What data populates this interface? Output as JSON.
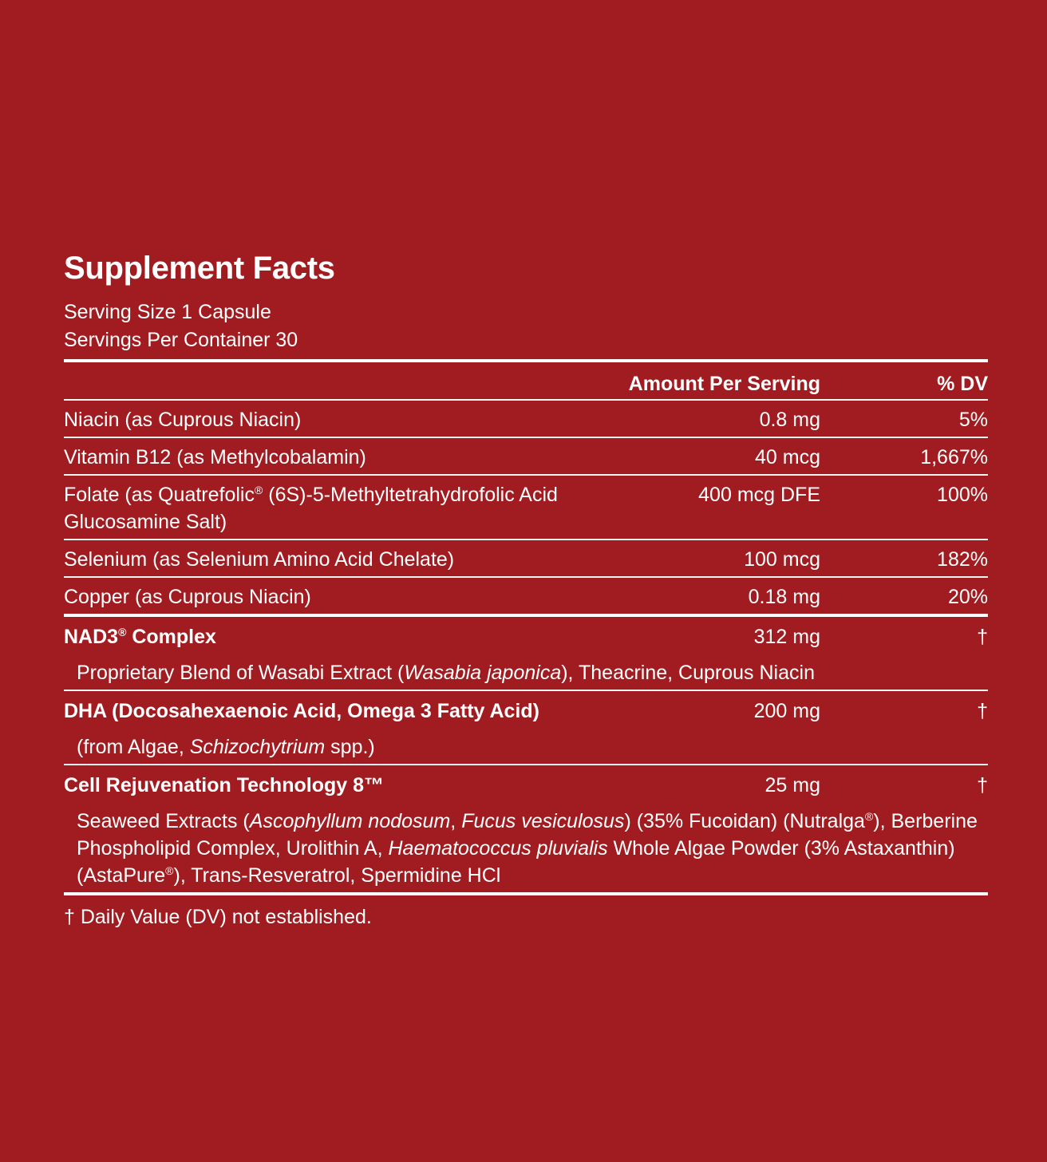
{
  "title": "Supplement Facts",
  "serving_size": "Serving Size 1 Capsule",
  "servings_per_container": "Servings Per Container 30",
  "header": {
    "amount": "Amount Per Serving",
    "dv": "% DV"
  },
  "nutrients": [
    {
      "name": "Niacin (as Cuprous Niacin)",
      "amount": "0.8 mg",
      "dv": "5%"
    },
    {
      "name": "Vitamin B12 (as Methylcobalamin)",
      "amount": "40 mcg",
      "dv": "1,667%"
    },
    {
      "name": "Folate (as Quatrefolic® (6S)-5-Methyltetrahydrofolic Acid Glucosamine Salt)",
      "amount": "400 mcg DFE",
      "dv": "100%"
    },
    {
      "name": "Selenium (as Selenium Amino Acid Chelate)",
      "amount": "100 mcg",
      "dv": "182%"
    },
    {
      "name": "Copper (as Cuprous Niacin)",
      "amount": "0.18 mg",
      "dv": "20%"
    }
  ],
  "blends": [
    {
      "name": "NAD3® Complex",
      "amount": "312 mg",
      "dv": "†",
      "desc": [
        {
          "t": "Proprietary Blend of Wasabi Extract ("
        },
        {
          "t": "Wasabia japonica",
          "i": true
        },
        {
          "t": "), Theacrine, Cuprous Niacin"
        }
      ]
    },
    {
      "name": "DHA (Docosahexaenoic Acid, Omega 3 Fatty Acid)",
      "amount": "200 mg",
      "dv": "†",
      "desc": [
        {
          "t": "(from Algae, "
        },
        {
          "t": "Schizochytrium",
          "i": true
        },
        {
          "t": " spp.)"
        }
      ]
    },
    {
      "name": "Cell Rejuvenation Technology 8™",
      "amount": "25 mg",
      "dv": "†",
      "desc": [
        {
          "t": "Seaweed Extracts ("
        },
        {
          "t": "Ascophyllum nodosum",
          "i": true
        },
        {
          "t": ", "
        },
        {
          "t": "Fucus vesiculosus",
          "i": true
        },
        {
          "t": ") (35% Fucoidan) (Nutralga®), Berberine Phospholipid Complex, Urolithin A, "
        },
        {
          "t": "Haematococcus pluvialis",
          "i": true
        },
        {
          "t": " Whole Algae Powder (3% Astaxanthin) (AstaPure®), Trans-Resveratrol, Spermidine HCl"
        }
      ]
    }
  ],
  "footnote": "† Daily Value (DV) not established.",
  "colors": {
    "background": "#a11c21",
    "text": "#ffffff"
  }
}
